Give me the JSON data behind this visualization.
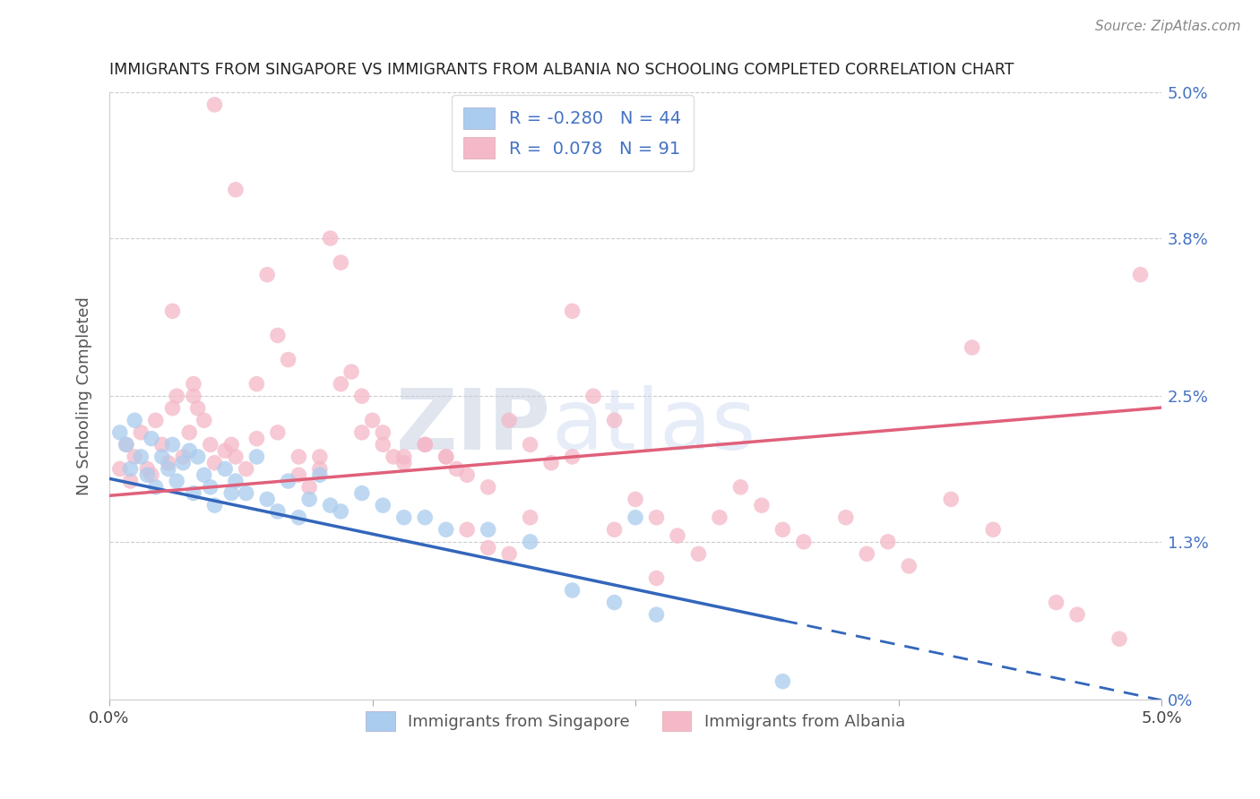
{
  "title": "IMMIGRANTS FROM SINGAPORE VS IMMIGRANTS FROM ALBANIA NO SCHOOLING COMPLETED CORRELATION CHART",
  "source": "Source: ZipAtlas.com",
  "ylabel": "No Schooling Completed",
  "legend_labels": [
    "Immigrants from Singapore",
    "Immigrants from Albania"
  ],
  "legend_r": [
    -0.28,
    0.078
  ],
  "legend_n": [
    44,
    91
  ],
  "series_colors": [
    "#aaccee",
    "#f4b8c8"
  ],
  "line_colors": [
    "#3366bb",
    "#e0607a"
  ],
  "xmin": 0.0,
  "xmax": 5.0,
  "ymin": 0.0,
  "ymax": 5.0,
  "yticks": [
    0.0,
    1.3,
    2.5,
    3.8,
    5.0
  ],
  "ytick_labels": [
    "0%",
    "1.3%",
    "2.5%",
    "3.8%",
    "5.0%"
  ],
  "watermark_zip": "ZIP",
  "watermark_atlas": "atlas",
  "title_color": "#222222",
  "axis_label_color": "#4472c4",
  "background_color": "#ffffff",
  "sg_intercept": 1.82,
  "sg_slope": -0.365,
  "al_intercept": 1.68,
  "al_slope": 0.145,
  "singapore_x": [
    0.05,
    0.08,
    0.1,
    0.12,
    0.15,
    0.18,
    0.2,
    0.22,
    0.25,
    0.28,
    0.3,
    0.32,
    0.35,
    0.38,
    0.4,
    0.42,
    0.45,
    0.48,
    0.5,
    0.55,
    0.58,
    0.6,
    0.65,
    0.7,
    0.75,
    0.8,
    0.85,
    0.9,
    0.95,
    1.0,
    1.05,
    1.1,
    1.2,
    1.3,
    1.4,
    1.5,
    1.6,
    1.8,
    2.0,
    2.2,
    2.4,
    2.5,
    2.6,
    3.2
  ],
  "singapore_y": [
    2.2,
    2.1,
    1.9,
    2.3,
    2.0,
    1.85,
    2.15,
    1.75,
    2.0,
    1.9,
    2.1,
    1.8,
    1.95,
    2.05,
    1.7,
    2.0,
    1.85,
    1.75,
    1.6,
    1.9,
    1.7,
    1.8,
    1.7,
    2.0,
    1.65,
    1.55,
    1.8,
    1.5,
    1.65,
    1.85,
    1.6,
    1.55,
    1.7,
    1.6,
    1.5,
    1.5,
    1.4,
    1.4,
    1.3,
    0.9,
    0.8,
    1.5,
    0.7,
    0.15
  ],
  "albania_x": [
    0.05,
    0.08,
    0.1,
    0.12,
    0.15,
    0.18,
    0.2,
    0.22,
    0.25,
    0.28,
    0.3,
    0.32,
    0.35,
    0.38,
    0.4,
    0.42,
    0.45,
    0.48,
    0.5,
    0.55,
    0.58,
    0.6,
    0.65,
    0.7,
    0.75,
    0.8,
    0.85,
    0.9,
    0.95,
    1.0,
    1.05,
    1.1,
    1.15,
    1.2,
    1.25,
    1.3,
    1.35,
    1.4,
    1.5,
    1.6,
    1.65,
    1.7,
    1.8,
    1.9,
    2.0,
    2.1,
    2.2,
    2.3,
    2.4,
    2.5,
    2.6,
    2.7,
    2.8,
    2.9,
    3.0,
    3.1,
    3.2,
    3.3,
    3.5,
    3.6,
    3.7,
    3.8,
    4.0,
    4.1,
    4.2,
    4.5,
    4.6,
    4.8,
    4.9,
    0.3,
    0.4,
    0.5,
    0.6,
    0.7,
    0.8,
    0.9,
    1.0,
    1.1,
    1.2,
    1.3,
    1.4,
    1.5,
    1.6,
    1.7,
    1.8,
    1.9,
    2.0,
    2.2,
    2.4,
    2.6
  ],
  "albania_y": [
    1.9,
    2.1,
    1.8,
    2.0,
    2.2,
    1.9,
    1.85,
    2.3,
    2.1,
    1.95,
    3.2,
    2.5,
    2.0,
    2.2,
    2.6,
    2.4,
    2.3,
    2.1,
    1.95,
    2.05,
    2.1,
    2.0,
    1.9,
    2.15,
    3.5,
    3.0,
    2.8,
    1.85,
    1.75,
    2.0,
    3.8,
    3.6,
    2.7,
    2.5,
    2.3,
    2.2,
    2.0,
    1.95,
    2.1,
    2.0,
    1.9,
    1.85,
    1.75,
    2.3,
    2.1,
    1.95,
    3.2,
    2.5,
    2.3,
    1.65,
    1.5,
    1.35,
    1.2,
    1.5,
    1.75,
    1.6,
    1.4,
    1.3,
    1.5,
    1.2,
    1.3,
    1.1,
    1.65,
    2.9,
    1.4,
    0.8,
    0.7,
    0.5,
    3.5,
    2.4,
    2.5,
    4.9,
    4.2,
    2.6,
    2.2,
    2.0,
    1.9,
    2.6,
    2.2,
    2.1,
    2.0,
    2.1,
    2.0,
    1.4,
    1.25,
    1.2,
    1.5,
    2.0,
    1.4,
    1.0
  ]
}
